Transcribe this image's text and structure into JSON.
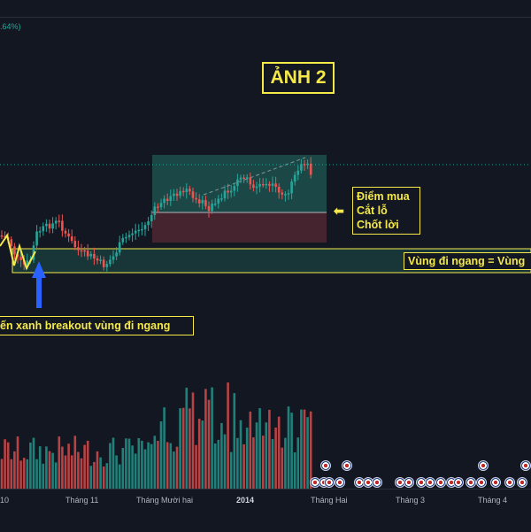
{
  "header": {
    "change_text": ".64%)"
  },
  "annotations": {
    "title": "ẢNH 2",
    "legend": [
      "Điểm mua",
      "Cắt lỗ",
      "Chốt lời"
    ],
    "legend_arrow": "⬅",
    "range_label": "Vùng đi ngang = Vùng",
    "breakout_label": "ến xanh breakout vùng đi ngang"
  },
  "time_axis": {
    "ticks": [
      "10",
      "Tháng 11",
      "Tháng Mười hai",
      "2014",
      "Tháng Hai",
      "Tháng 3",
      "Tháng 4"
    ],
    "bold_tick": "2014"
  },
  "colors": {
    "background": "#131722",
    "up": "#26a69a",
    "down": "#ef5350",
    "annotation": "#f5e94a",
    "breakout_arrow": "#2962ff",
    "profit_zone": "#1f5e55",
    "loss_zone": "#5c2b35"
  },
  "icons": {
    "event_marker": "us-flag-event-icon",
    "breakout_marker": "blue-up-arrow-icon"
  },
  "chart_data": {
    "type": "candlestick",
    "series": [
      {
        "name": "",
        "values": []
      }
    ],
    "volume": []
  }
}
